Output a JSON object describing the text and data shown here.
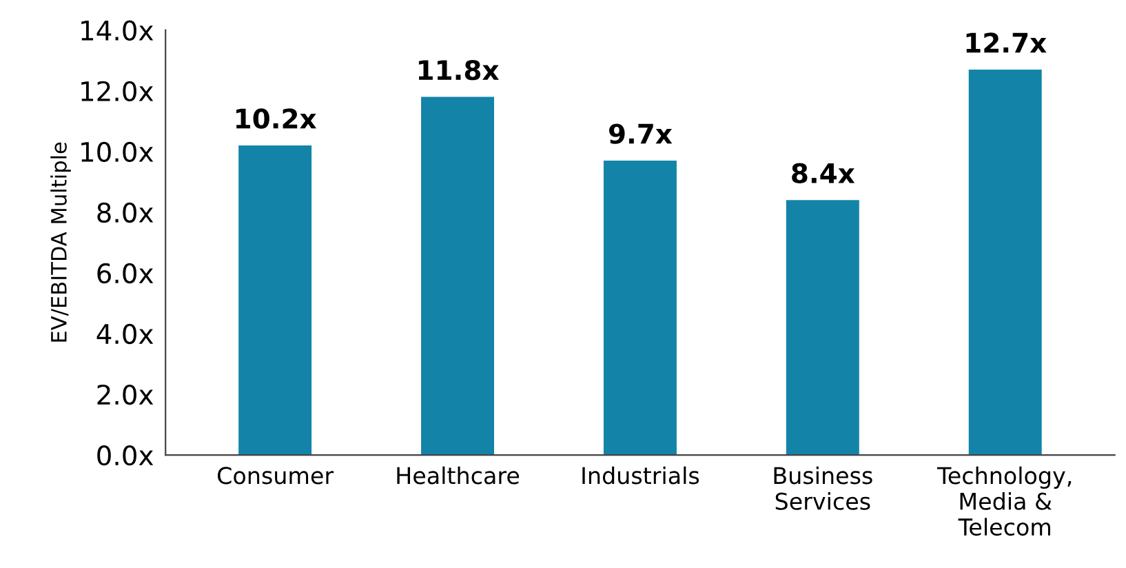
{
  "chart_data": {
    "type": "bar",
    "ylabel": "EV/EBITDA Multiple",
    "categories": [
      "Consumer",
      "Healthcare",
      "Industrials",
      "Business\nServices",
      "Technology,\nMedia &\nTelecom"
    ],
    "values": [
      10.2,
      11.8,
      9.7,
      8.4,
      12.7
    ],
    "value_labels": [
      "10.2x",
      "11.8x",
      "9.7x",
      "8.4x",
      "12.7x"
    ],
    "color": "#1384a8",
    "ylim": [
      0,
      14
    ],
    "yticks": [
      {
        "value": 0,
        "label": "0.0x"
      },
      {
        "value": 2,
        "label": "2.0x"
      },
      {
        "value": 4,
        "label": "4.0x"
      },
      {
        "value": 6,
        "label": "6.0x"
      },
      {
        "value": 8,
        "label": "8.0x"
      },
      {
        "value": 10,
        "label": "10.0x"
      },
      {
        "value": 12,
        "label": "12.0x"
      },
      {
        "value": 14,
        "label": "14.0x"
      }
    ],
    "grid": false,
    "legend": false
  }
}
